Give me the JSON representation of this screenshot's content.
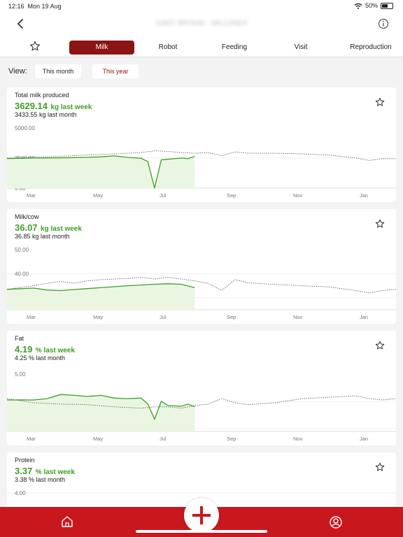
{
  "status": {
    "time": "12:16",
    "date": "Mon 19 Aug",
    "battery": "50%"
  },
  "header": {
    "title": "GAEC BRISON - VALLONES"
  },
  "tabs": [
    "Milk",
    "Robot",
    "Feeding",
    "Visit",
    "Reproduction"
  ],
  "active_tab": "Milk",
  "view": {
    "label": "View:",
    "options": [
      "This month",
      "This year"
    ],
    "selected": "This year"
  },
  "cards": [
    {
      "title": "Total milk produced",
      "main_value": "3629.14",
      "main_unit": "kg last week",
      "sub": "3433.55 kg last month",
      "y_ticks": [
        "5000.00",
        "2500.00",
        "0.00"
      ]
    },
    {
      "title": "Milk/cow",
      "main_value": "36.07",
      "main_unit": "kg last week",
      "sub": "36.85 kg last month",
      "y_ticks": [
        "50.00",
        "40.00",
        "30.00"
      ]
    },
    {
      "title": "Fat",
      "main_value": "4.19",
      "main_unit": "% last week",
      "sub": "4.25 % last month",
      "y_ticks": [
        "5.00",
        "4.00",
        "3.00"
      ]
    },
    {
      "title": "Protein",
      "main_value": "3.37",
      "main_unit": "% last week",
      "sub": "3.38 % last month",
      "y_ticks": [
        "4.00"
      ]
    }
  ],
  "x_labels": [
    "Mar",
    "May",
    "Jul",
    "Sep",
    "Nov",
    "Jan"
  ],
  "colors": {
    "accent": "#8b1414",
    "nav": "#c8181e",
    "green": "#3f9e25",
    "fill": "#eaf6e2"
  },
  "icons": {
    "back": "chevron-left-icon",
    "info": "info-icon",
    "favorite": "star-icon",
    "home": "home-icon",
    "add": "plus-icon",
    "profile": "user-icon"
  },
  "chart_data": [
    {
      "type": "line",
      "title": "Total milk produced",
      "ylim": [
        0,
        5000
      ],
      "series": [
        {
          "points": [
            [
              0,
              2460
            ],
            [
              4,
              2500
            ],
            [
              8,
              2520
            ],
            [
              12,
              2560
            ],
            [
              14,
              2600
            ],
            [
              16,
              2680
            ],
            [
              18,
              2550
            ],
            [
              20,
              2480
            ],
            [
              21,
              2200
            ],
            [
              22,
              0
            ],
            [
              23,
              2350
            ],
            [
              24,
              2400
            ],
            [
              26,
              2500
            ],
            [
              27,
              2450
            ],
            [
              28,
              2640
            ]
          ]
        },
        {
          "points": [
            [
              0,
              2500
            ],
            [
              6,
              2600
            ],
            [
              12,
              2750
            ],
            [
              18,
              2900
            ],
            [
              20,
              2950
            ],
            [
              22,
              3100
            ],
            [
              24,
              3050
            ],
            [
              26,
              2950
            ],
            [
              28,
              2900
            ],
            [
              30,
              2950
            ],
            [
              32,
              2700
            ],
            [
              34,
              3000
            ],
            [
              36,
              2900
            ],
            [
              40,
              2900
            ],
            [
              44,
              2850
            ],
            [
              48,
              2750
            ],
            [
              52,
              2500
            ],
            [
              54,
              2300
            ],
            [
              56,
              2450
            ],
            [
              58,
              2450
            ]
          ]
        }
      ]
    },
    {
      "type": "line",
      "title": "Milk/cow",
      "ylim": [
        25,
        50
      ],
      "series": [
        {
          "points": [
            [
              0,
              33.5
            ],
            [
              4,
              34.0
            ],
            [
              6,
              33.2
            ],
            [
              8,
              33.0
            ],
            [
              10,
              33.4
            ],
            [
              12,
              33.8
            ],
            [
              14,
              34.2
            ],
            [
              16,
              34.6
            ],
            [
              18,
              35.0
            ],
            [
              20,
              35.3
            ],
            [
              22,
              35.6
            ],
            [
              24,
              35.8
            ],
            [
              26,
              35.6
            ],
            [
              28,
              34.2
            ]
          ]
        },
        {
          "points": [
            [
              0,
              33.5
            ],
            [
              4,
              35.0
            ],
            [
              6,
              36.0
            ],
            [
              8,
              36.8
            ],
            [
              10,
              36.0
            ],
            [
              12,
              37.0
            ],
            [
              14,
              37.5
            ],
            [
              16,
              37.8
            ],
            [
              18,
              38.0
            ],
            [
              20,
              38.5
            ],
            [
              22,
              37.8
            ],
            [
              24,
              38.5
            ],
            [
              26,
              37.8
            ],
            [
              28,
              37.0
            ],
            [
              30,
              36.0
            ],
            [
              32,
              33.0
            ],
            [
              34,
              37.5
            ],
            [
              36,
              36.2
            ],
            [
              40,
              35.5
            ],
            [
              44,
              35.0
            ],
            [
              48,
              34.5
            ],
            [
              52,
              33.0
            ],
            [
              54,
              32.0
            ],
            [
              56,
              33.0
            ],
            [
              58,
              33.5
            ]
          ]
        }
      ]
    },
    {
      "type": "line",
      "title": "Fat",
      "ylim": [
        2.9,
        5.1
      ],
      "series": [
        {
          "points": [
            [
              0,
              4.05
            ],
            [
              4,
              4.05
            ],
            [
              6,
              4.1
            ],
            [
              8,
              4.25
            ],
            [
              10,
              4.22
            ],
            [
              12,
              4.18
            ],
            [
              14,
              4.22
            ],
            [
              16,
              4.12
            ],
            [
              18,
              4.1
            ],
            [
              20,
              4.12
            ],
            [
              21,
              3.9
            ],
            [
              22,
              3.35
            ],
            [
              23,
              4.0
            ],
            [
              24,
              3.85
            ],
            [
              26,
              3.82
            ],
            [
              27,
              3.9
            ],
            [
              28,
              3.8
            ]
          ]
        },
        {
          "points": [
            [
              0,
              4.1
            ],
            [
              4,
              3.95
            ],
            [
              8,
              3.9
            ],
            [
              12,
              3.88
            ],
            [
              16,
              3.8
            ],
            [
              20,
              3.75
            ],
            [
              22,
              3.8
            ],
            [
              24,
              3.8
            ],
            [
              26,
              3.75
            ],
            [
              28,
              3.85
            ],
            [
              30,
              3.9
            ],
            [
              32,
              4.1
            ],
            [
              34,
              3.95
            ],
            [
              36,
              3.88
            ],
            [
              40,
              3.95
            ],
            [
              44,
              4.1
            ],
            [
              48,
              4.15
            ],
            [
              52,
              4.2
            ],
            [
              54,
              4.1
            ],
            [
              56,
              4.05
            ],
            [
              58,
              4.1
            ]
          ]
        }
      ]
    },
    {
      "type": "line",
      "title": "Protein",
      "ylim": [
        3.0,
        4.0
      ],
      "series": []
    }
  ]
}
